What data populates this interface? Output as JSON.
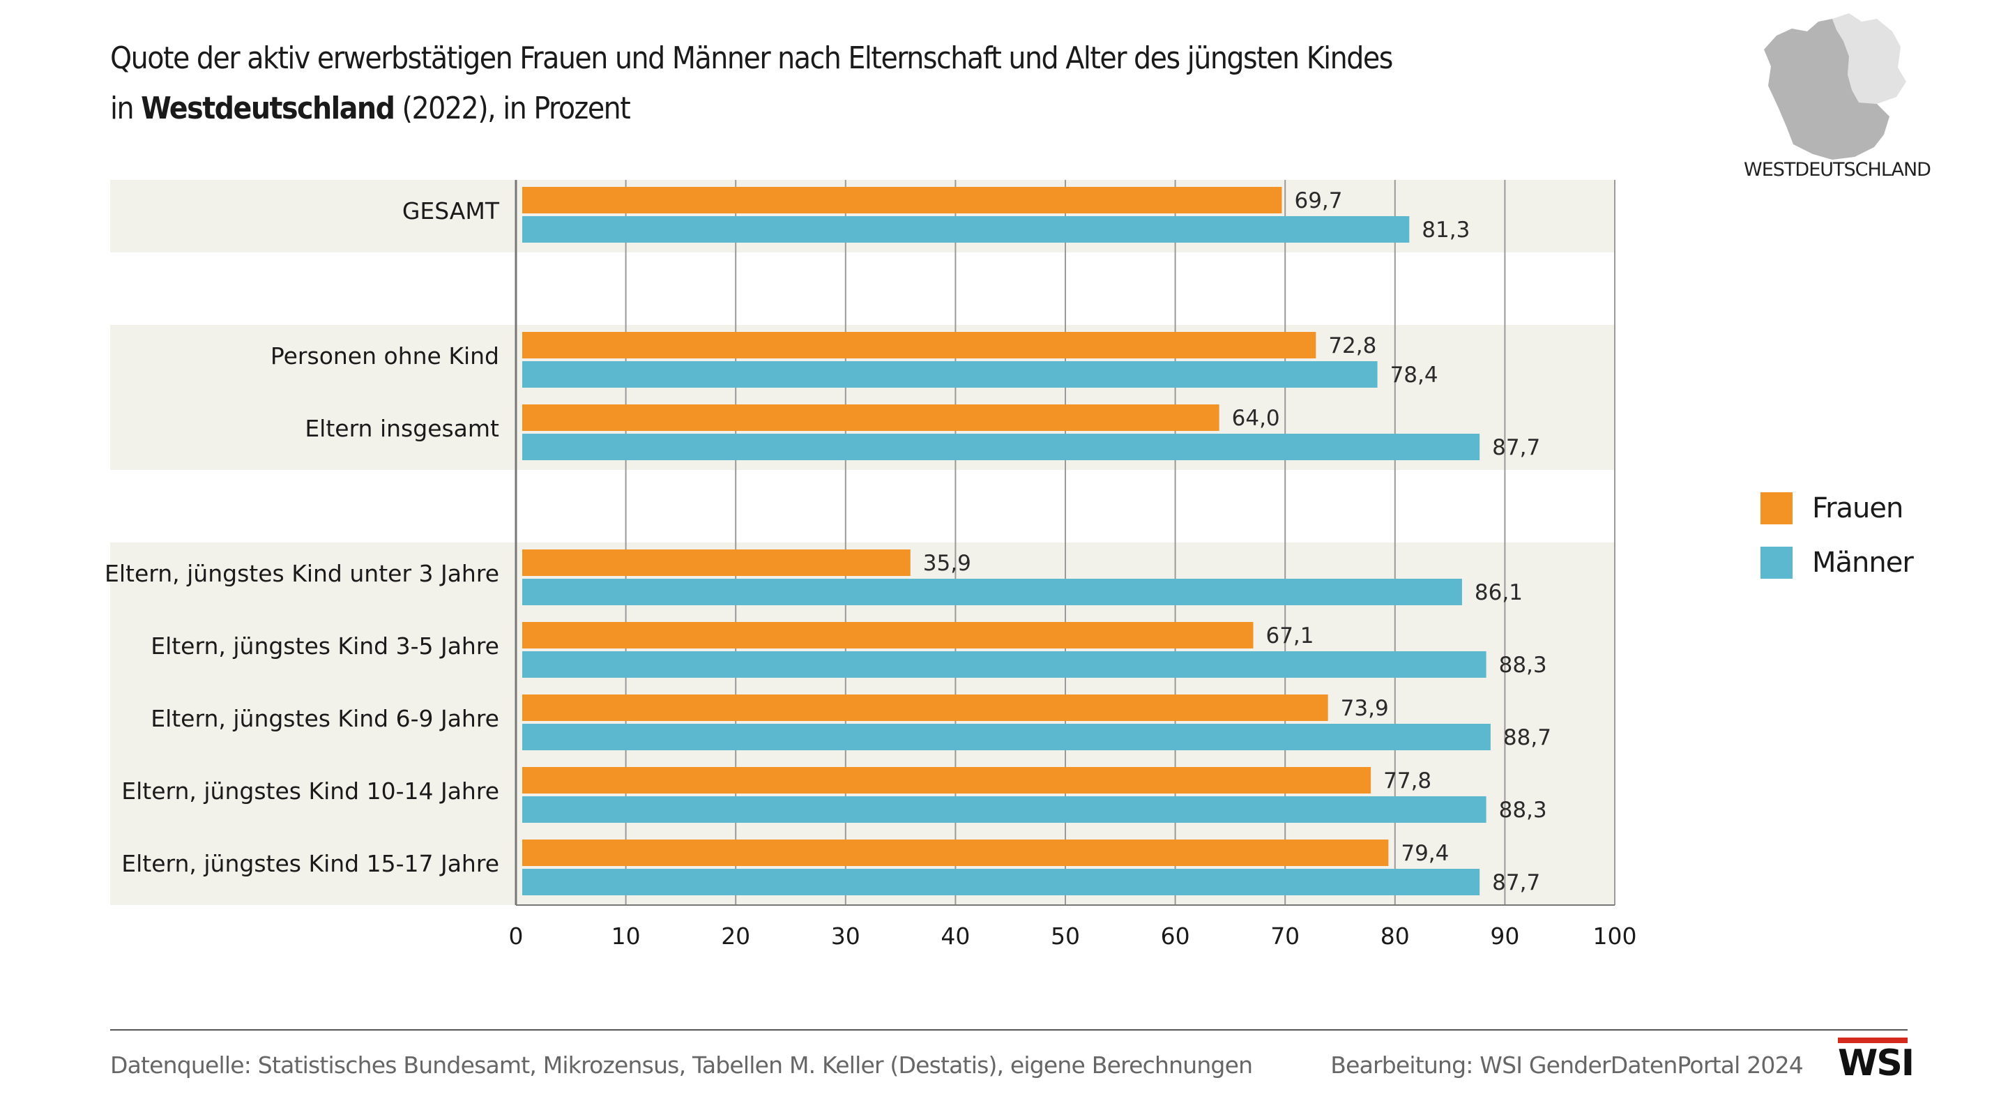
{
  "header": {
    "title_line1": "Quote der aktiv erwerbstätigen Frauen und Männer nach Elternschaft und Alter des jüngsten Kindes",
    "title_line2_prefix": "in ",
    "title_line2_bold": "Westdeutschland",
    "title_line2_suffix": " (2022), in Prozent"
  },
  "map": {
    "label": "WESTDEUTSCHLAND",
    "west_color": "#b4b4b4",
    "east_color": "#e2e2e2"
  },
  "legend": {
    "items": [
      {
        "label": "Frauen",
        "color": "#f39325"
      },
      {
        "label": "Männer",
        "color": "#5bb8cf"
      }
    ]
  },
  "footer": {
    "source": "Datenquelle: Statistisches Bundesamt, Mikrozensus, Tabellen M. Keller (Destatis), eigene Berechnungen",
    "credit": "Bearbeitung: WSI GenderDatenPortal 2024",
    "logo_text": "WSI",
    "logo_accent": "#d52b1e"
  },
  "chart_data": {
    "type": "bar",
    "orientation": "horizontal",
    "categories": [
      "GESAMT",
      "Personen ohne Kind",
      "Eltern insgesamt",
      "Eltern, jüngstes Kind unter 3 Jahre",
      "Eltern, jüngstes Kind 3-5 Jahre",
      "Eltern, jüngstes Kind 6-9 Jahre",
      "Eltern, jüngstes Kind 10-14 Jahre",
      "Eltern, jüngstes Kind 15-17 Jahre"
    ],
    "groups": [
      [
        0
      ],
      [
        1,
        2
      ],
      [
        3,
        4,
        5,
        6,
        7
      ]
    ],
    "series": [
      {
        "name": "Frauen",
        "color": "#f39325",
        "values": [
          69.7,
          72.8,
          64.0,
          35.9,
          67.1,
          73.9,
          77.8,
          79.4
        ],
        "labels": [
          "69,7",
          "72,8",
          "64,0",
          "35,9",
          "67,1",
          "73,9",
          "77,8",
          "79,4"
        ]
      },
      {
        "name": "Männer",
        "color": "#5bb8cf",
        "values": [
          81.3,
          78.4,
          87.7,
          86.1,
          88.3,
          88.7,
          88.3,
          87.7
        ],
        "labels": [
          "81,3",
          "78,4",
          "87,7",
          "86,1",
          "88,3",
          "88,7",
          "88,3",
          "87,7"
        ]
      }
    ],
    "xlim": [
      0,
      100
    ],
    "xticks": [
      0,
      10,
      20,
      30,
      40,
      50,
      60,
      70,
      80,
      90,
      100
    ],
    "title": "Quote der aktiv erwerbstätigen Frauen und Männer nach Elternschaft und Alter des jüngsten Kindes in Westdeutschland (2022), in Prozent",
    "xlabel": "",
    "ylabel": "",
    "grid": true,
    "band_color": "#f2f1ea",
    "legend_position": "right"
  }
}
